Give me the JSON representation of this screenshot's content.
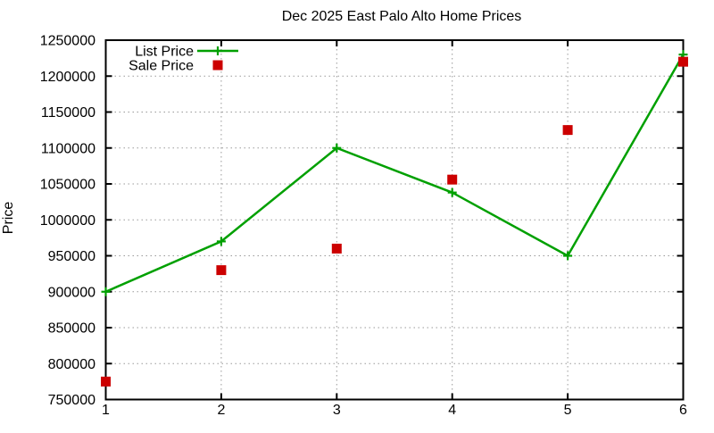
{
  "chart_data": {
    "type": "line",
    "title": "Dec 2025 East Palo Alto Home Prices",
    "xlabel": "",
    "ylabel": "Price",
    "x": [
      1,
      2,
      3,
      4,
      5,
      6
    ],
    "xlim": [
      1,
      6
    ],
    "ylim": [
      750000,
      1250000
    ],
    "xticks": [
      1,
      2,
      3,
      4,
      5,
      6
    ],
    "yticks": [
      750000,
      800000,
      850000,
      900000,
      950000,
      1000000,
      1050000,
      1100000,
      1150000,
      1200000,
      1250000
    ],
    "grid": true,
    "grid_style": "dotted",
    "legend_position": "inside-top-left",
    "series": [
      {
        "name": "List Price",
        "style": "line-with-markers",
        "marker": "plus",
        "color": "#00a000",
        "values": [
          900000,
          970000,
          1100000,
          1038000,
          950000,
          1230000
        ]
      },
      {
        "name": "Sale Price",
        "style": "points",
        "marker": "square",
        "color": "#cc0000",
        "values": [
          775000,
          930000,
          960000,
          1056000,
          1125000,
          1220000
        ]
      }
    ],
    "colors": {
      "background": "#ffffff",
      "border": "#000000",
      "grid": "#999999",
      "text": "#000000",
      "list_price": "#00a000",
      "sale_price": "#cc0000"
    }
  }
}
